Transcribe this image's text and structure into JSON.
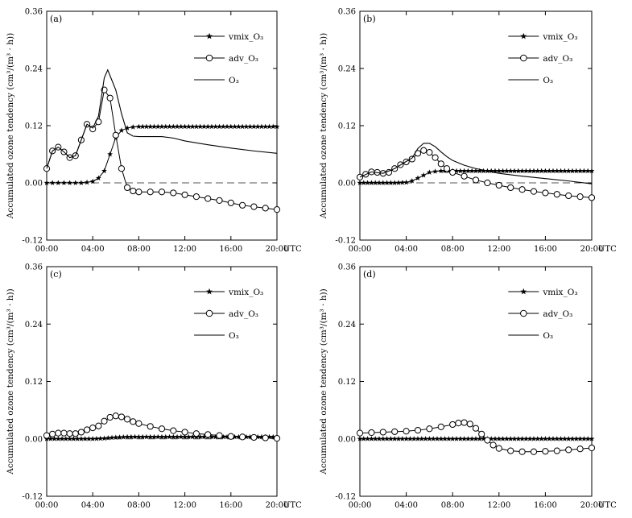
{
  "chart_data": [
    {
      "type": "line",
      "panel_label": "(a)",
      "ylabel": "Accumulated ozone tendency (cm³/(m³ · h))",
      "x_ticks": [
        "00:00",
        "04:00",
        "08:00",
        "12:00",
        "16:00",
        "20:00"
      ],
      "x_unit": "UTC",
      "y_ticks": [
        "-0.12",
        "0.00",
        "0.12",
        "0.24",
        "0.36"
      ],
      "xlim": [
        0,
        20
      ],
      "ylim": [
        -0.12,
        0.36
      ],
      "legend_position": "top-right",
      "series": [
        {
          "name": "vmix_O₃",
          "marker": "star",
          "points": [
            [
              0,
              0
            ],
            [
              0.5,
              0
            ],
            [
              1,
              0
            ],
            [
              1.5,
              0
            ],
            [
              2,
              0
            ],
            [
              2.5,
              0
            ],
            [
              3,
              0
            ],
            [
              3.5,
              0.001
            ],
            [
              4,
              0.003
            ],
            [
              4.5,
              0.01
            ],
            [
              5,
              0.025
            ],
            [
              5.5,
              0.06
            ],
            [
              6,
              0.095
            ],
            [
              6.5,
              0.11
            ],
            [
              7,
              0.115
            ],
            [
              7.5,
              0.117
            ],
            [
              8,
              0.118
            ],
            [
              9,
              0.118
            ],
            [
              10,
              0.118
            ],
            [
              11,
              0.118
            ],
            [
              12,
              0.118
            ],
            [
              13,
              0.118
            ],
            [
              14,
              0.118
            ],
            [
              15,
              0.118
            ],
            [
              16,
              0.118
            ],
            [
              17,
              0.118
            ],
            [
              18,
              0.118
            ],
            [
              19,
              0.118
            ],
            [
              20,
              0.118
            ]
          ]
        },
        {
          "name": "adv_O₃",
          "marker": "circle",
          "points": [
            [
              0,
              0.03
            ],
            [
              0.5,
              0.067
            ],
            [
              1,
              0.075
            ],
            [
              1.5,
              0.065
            ],
            [
              2,
              0.053
            ],
            [
              2.5,
              0.057
            ],
            [
              3,
              0.09
            ],
            [
              3.5,
              0.123
            ],
            [
              4,
              0.113
            ],
            [
              4.5,
              0.128
            ],
            [
              5,
              0.195
            ],
            [
              5.5,
              0.178
            ],
            [
              6,
              0.1
            ],
            [
              6.5,
              0.03
            ],
            [
              7,
              -0.01
            ],
            [
              7.5,
              -0.017
            ],
            [
              8,
              -0.019
            ],
            [
              9,
              -0.019
            ],
            [
              10,
              -0.019
            ],
            [
              11,
              -0.021
            ],
            [
              12,
              -0.025
            ],
            [
              13,
              -0.029
            ],
            [
              14,
              -0.033
            ],
            [
              15,
              -0.037
            ],
            [
              16,
              -0.042
            ],
            [
              17,
              -0.047
            ],
            [
              18,
              -0.05
            ],
            [
              19,
              -0.053
            ],
            [
              20,
              -0.056
            ]
          ]
        },
        {
          "name": "O₃",
          "marker": "none",
          "points": [
            [
              0,
              0.03
            ],
            [
              0.5,
              0.067
            ],
            [
              1,
              0.075
            ],
            [
              1.5,
              0.065
            ],
            [
              2,
              0.053
            ],
            [
              2.5,
              0.057
            ],
            [
              3,
              0.09
            ],
            [
              3.5,
              0.123
            ],
            [
              4,
              0.115
            ],
            [
              4.5,
              0.14
            ],
            [
              5,
              0.22
            ],
            [
              5.3,
              0.237
            ],
            [
              5.5,
              0.225
            ],
            [
              6,
              0.195
            ],
            [
              6.5,
              0.145
            ],
            [
              7,
              0.105
            ],
            [
              7.5,
              0.098
            ],
            [
              8,
              0.097
            ],
            [
              10,
              0.097
            ],
            [
              11,
              0.094
            ],
            [
              12,
              0.088
            ],
            [
              14,
              0.08
            ],
            [
              16,
              0.073
            ],
            [
              18,
              0.067
            ],
            [
              20,
              0.062
            ]
          ]
        }
      ]
    },
    {
      "type": "line",
      "panel_label": "(b)",
      "ylabel": "Accumulated ozone tendency (cm³/(m³ · h))",
      "x_ticks": [
        "00:00",
        "04:00",
        "08:00",
        "12:00",
        "16:00",
        "20:00"
      ],
      "x_unit": "UTC",
      "y_ticks": [
        "-0.12",
        "0.00",
        "0.12",
        "0.24",
        "0.36"
      ],
      "xlim": [
        0,
        20
      ],
      "ylim": [
        -0.12,
        0.36
      ],
      "legend_position": "top-right",
      "series": [
        {
          "name": "vmix_O₃",
          "marker": "star",
          "points": [
            [
              0,
              0
            ],
            [
              1,
              0
            ],
            [
              2,
              0
            ],
            [
              3,
              0
            ],
            [
              4,
              0.001
            ],
            [
              4.5,
              0.004
            ],
            [
              5,
              0.01
            ],
            [
              5.5,
              0.016
            ],
            [
              6,
              0.022
            ],
            [
              6.5,
              0.024
            ],
            [
              7,
              0.025
            ],
            [
              8,
              0.025
            ],
            [
              10,
              0.025
            ],
            [
              12,
              0.025
            ],
            [
              14,
              0.025
            ],
            [
              16,
              0.025
            ],
            [
              18,
              0.025
            ],
            [
              20,
              0.025
            ]
          ]
        },
        {
          "name": "adv_O₃",
          "marker": "circle",
          "points": [
            [
              0,
              0.012
            ],
            [
              0.5,
              0.018
            ],
            [
              1,
              0.023
            ],
            [
              1.5,
              0.022
            ],
            [
              2,
              0.02
            ],
            [
              2.5,
              0.022
            ],
            [
              3,
              0.03
            ],
            [
              3.5,
              0.038
            ],
            [
              4,
              0.044
            ],
            [
              4.5,
              0.05
            ],
            [
              5,
              0.062
            ],
            [
              5.5,
              0.068
            ],
            [
              6,
              0.064
            ],
            [
              6.5,
              0.053
            ],
            [
              7,
              0.04
            ],
            [
              7.5,
              0.03
            ],
            [
              8,
              0.022
            ],
            [
              9,
              0.014
            ],
            [
              10,
              0.006
            ],
            [
              11,
              0
            ],
            [
              12,
              -0.005
            ],
            [
              13,
              -0.01
            ],
            [
              14,
              -0.014
            ],
            [
              15,
              -0.018
            ],
            [
              16,
              -0.021
            ],
            [
              17,
              -0.024
            ],
            [
              18,
              -0.027
            ],
            [
              19,
              -0.029
            ],
            [
              20,
              -0.031
            ]
          ]
        },
        {
          "name": "O₃",
          "marker": "none",
          "points": [
            [
              0,
              0.012
            ],
            [
              1,
              0.023
            ],
            [
              2,
              0.02
            ],
            [
              3,
              0.03
            ],
            [
              4,
              0.045
            ],
            [
              4.5,
              0.052
            ],
            [
              5,
              0.072
            ],
            [
              5.5,
              0.083
            ],
            [
              6,
              0.083
            ],
            [
              6.5,
              0.076
            ],
            [
              7,
              0.065
            ],
            [
              7.5,
              0.055
            ],
            [
              8,
              0.047
            ],
            [
              9,
              0.037
            ],
            [
              10,
              0.03
            ],
            [
              11,
              0.025
            ],
            [
              12,
              0.02
            ],
            [
              14,
              0.014
            ],
            [
              16,
              0.009
            ],
            [
              18,
              0.004
            ],
            [
              20,
              -0.002
            ]
          ]
        }
      ]
    },
    {
      "type": "line",
      "panel_label": "(c)",
      "ylabel": "Accumulated ozone tendency (cm³/(m³ · h))",
      "x_ticks": [
        "00:00",
        "04:00",
        "08:00",
        "12:00",
        "16:00",
        "20:00"
      ],
      "x_unit": "UTC",
      "y_ticks": [
        "-0.12",
        "0.00",
        "0.12",
        "0.24",
        "0.36"
      ],
      "xlim": [
        0,
        20
      ],
      "ylim": [
        -0.12,
        0.36
      ],
      "legend_position": "top-right",
      "series": [
        {
          "name": "vmix_O₃",
          "marker": "star",
          "points": [
            [
              0,
              0
            ],
            [
              1,
              0
            ],
            [
              2,
              0
            ],
            [
              3,
              0
            ],
            [
              4,
              0
            ],
            [
              5,
              0.001
            ],
            [
              6,
              0.003
            ],
            [
              7,
              0.004
            ],
            [
              8,
              0.004
            ],
            [
              10,
              0.004
            ],
            [
              12,
              0.004
            ],
            [
              14,
              0.004
            ],
            [
              16,
              0.004
            ],
            [
              18,
              0.004
            ],
            [
              20,
              0.004
            ]
          ]
        },
        {
          "name": "adv_O₃",
          "marker": "circle",
          "points": [
            [
              0,
              0.007
            ],
            [
              0.5,
              0.01
            ],
            [
              1,
              0.012
            ],
            [
              1.5,
              0.012
            ],
            [
              2,
              0.011
            ],
            [
              2.5,
              0.011
            ],
            [
              3,
              0.014
            ],
            [
              3.5,
              0.019
            ],
            [
              4,
              0.023
            ],
            [
              4.5,
              0.027
            ],
            [
              5,
              0.037
            ],
            [
              5.5,
              0.045
            ],
            [
              6,
              0.048
            ],
            [
              6.5,
              0.046
            ],
            [
              7,
              0.041
            ],
            [
              7.5,
              0.036
            ],
            [
              8,
              0.032
            ],
            [
              9,
              0.026
            ],
            [
              10,
              0.021
            ],
            [
              11,
              0.017
            ],
            [
              12,
              0.014
            ],
            [
              13,
              0.011
            ],
            [
              14,
              0.009
            ],
            [
              15,
              0.007
            ],
            [
              16,
              0.005
            ],
            [
              17,
              0.004
            ],
            [
              18,
              0.003
            ],
            [
              19,
              0.002
            ],
            [
              20,
              0.001
            ]
          ]
        }
      ]
    },
    {
      "type": "line",
      "panel_label": "(d)",
      "ylabel": "Accumulated ozone tendency (cm³/(m³ · h))",
      "x_ticks": [
        "00:00",
        "04:00",
        "08:00",
        "12:00",
        "16:00",
        "20:00"
      ],
      "x_unit": "UTC",
      "y_ticks": [
        "-0.12",
        "0.00",
        "0.12",
        "0.24",
        "0.36"
      ],
      "xlim": [
        0,
        20
      ],
      "ylim": [
        -0.12,
        0.36
      ],
      "legend_position": "top-right",
      "series": [
        {
          "name": "vmix_O₃",
          "marker": "star",
          "points": [
            [
              0,
              0
            ],
            [
              2,
              0
            ],
            [
              4,
              0
            ],
            [
              6,
              0
            ],
            [
              8,
              0
            ],
            [
              10,
              0
            ],
            [
              12,
              0
            ],
            [
              14,
              0
            ],
            [
              16,
              0
            ],
            [
              18,
              0
            ],
            [
              20,
              0
            ]
          ]
        },
        {
          "name": "adv_O₃",
          "marker": "circle",
          "points": [
            [
              0,
              0.012
            ],
            [
              1,
              0.013
            ],
            [
              2,
              0.014
            ],
            [
              3,
              0.015
            ],
            [
              4,
              0.016
            ],
            [
              5,
              0.018
            ],
            [
              6,
              0.021
            ],
            [
              7,
              0.025
            ],
            [
              8,
              0.03
            ],
            [
              8.5,
              0.033
            ],
            [
              9,
              0.034
            ],
            [
              9.5,
              0.031
            ],
            [
              10,
              0.022
            ],
            [
              10.5,
              0.01
            ],
            [
              11,
              -0.003
            ],
            [
              11.5,
              -0.013
            ],
            [
              12,
              -0.02
            ],
            [
              13,
              -0.025
            ],
            [
              14,
              -0.027
            ],
            [
              15,
              -0.027
            ],
            [
              16,
              -0.026
            ],
            [
              17,
              -0.025
            ],
            [
              18,
              -0.023
            ],
            [
              19,
              -0.021
            ],
            [
              20,
              -0.019
            ]
          ]
        }
      ]
    }
  ]
}
